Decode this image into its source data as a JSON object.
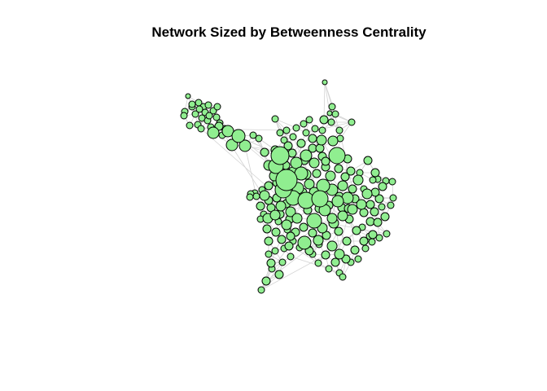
{
  "title": "Network Sized by Betweenness Centrality",
  "colors": {
    "node_fill": "#90ee90",
    "node_stroke": "#000000",
    "edge": "#d3d3d3",
    "background": "#ffffff"
  }
}
